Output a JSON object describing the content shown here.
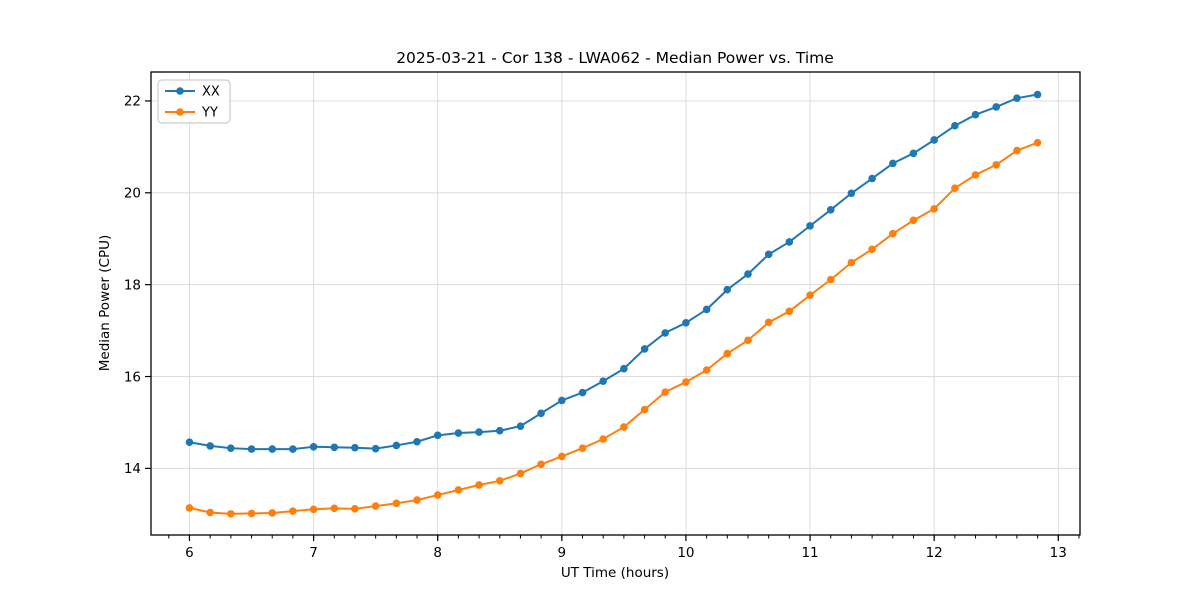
{
  "figure": {
    "background": "#ffffff",
    "spine_color": "#000000",
    "grid_color": "#dcdcdc"
  },
  "chart_data": {
    "type": "line",
    "title": "2025-03-21 - Cor 138 - LWA062 - Median Power vs. Time",
    "xlabel": "UT Time (hours)",
    "ylabel": "Median Power (CPU)",
    "xlim": [
      5.69,
      13.175
    ],
    "ylim": [
      12.55,
      22.63
    ],
    "x_ticks": [
      6,
      7,
      8,
      9,
      10,
      11,
      12,
      13
    ],
    "y_ticks": [
      14,
      16,
      18,
      20,
      22
    ],
    "x_minor_step": 0.1666667,
    "grid": true,
    "legend_position": "upper-left",
    "x": [
      6.0,
      6.167,
      6.333,
      6.5,
      6.667,
      6.833,
      7.0,
      7.167,
      7.333,
      7.5,
      7.667,
      7.833,
      8.0,
      8.167,
      8.333,
      8.5,
      8.667,
      8.833,
      9.0,
      9.167,
      9.333,
      9.5,
      9.667,
      9.833,
      10.0,
      10.167,
      10.333,
      10.5,
      10.667,
      10.833,
      11.0,
      11.167,
      11.333,
      11.5,
      11.667,
      11.833,
      12.0,
      12.167,
      12.333,
      12.5,
      12.667,
      12.833
    ],
    "series": [
      {
        "name": "XX",
        "color": "#1f77b4",
        "marker": "circle",
        "values": [
          14.57,
          14.49,
          14.44,
          14.42,
          14.42,
          14.42,
          14.47,
          14.46,
          14.45,
          14.43,
          14.5,
          14.58,
          14.72,
          14.77,
          14.79,
          14.82,
          14.92,
          15.2,
          15.48,
          15.65,
          15.9,
          16.17,
          16.6,
          16.95,
          17.17,
          17.46,
          17.89,
          18.23,
          18.66,
          18.93,
          19.28,
          19.63,
          19.99,
          20.31,
          20.64,
          20.86,
          21.15,
          21.46,
          21.7,
          21.87,
          22.06,
          22.14
        ]
      },
      {
        "name": "YY",
        "color": "#ff7f0e",
        "marker": "circle",
        "values": [
          13.14,
          13.04,
          13.01,
          13.02,
          13.03,
          13.07,
          13.11,
          13.13,
          13.12,
          13.18,
          13.24,
          13.31,
          13.42,
          13.53,
          13.64,
          13.73,
          13.89,
          14.09,
          14.26,
          14.44,
          14.64,
          14.9,
          15.28,
          15.66,
          15.88,
          16.14,
          16.5,
          16.79,
          17.18,
          17.42,
          17.77,
          18.11,
          18.48,
          18.77,
          19.11,
          19.4,
          19.65,
          20.1,
          20.39,
          20.61,
          20.92,
          21.09
        ]
      }
    ]
  }
}
